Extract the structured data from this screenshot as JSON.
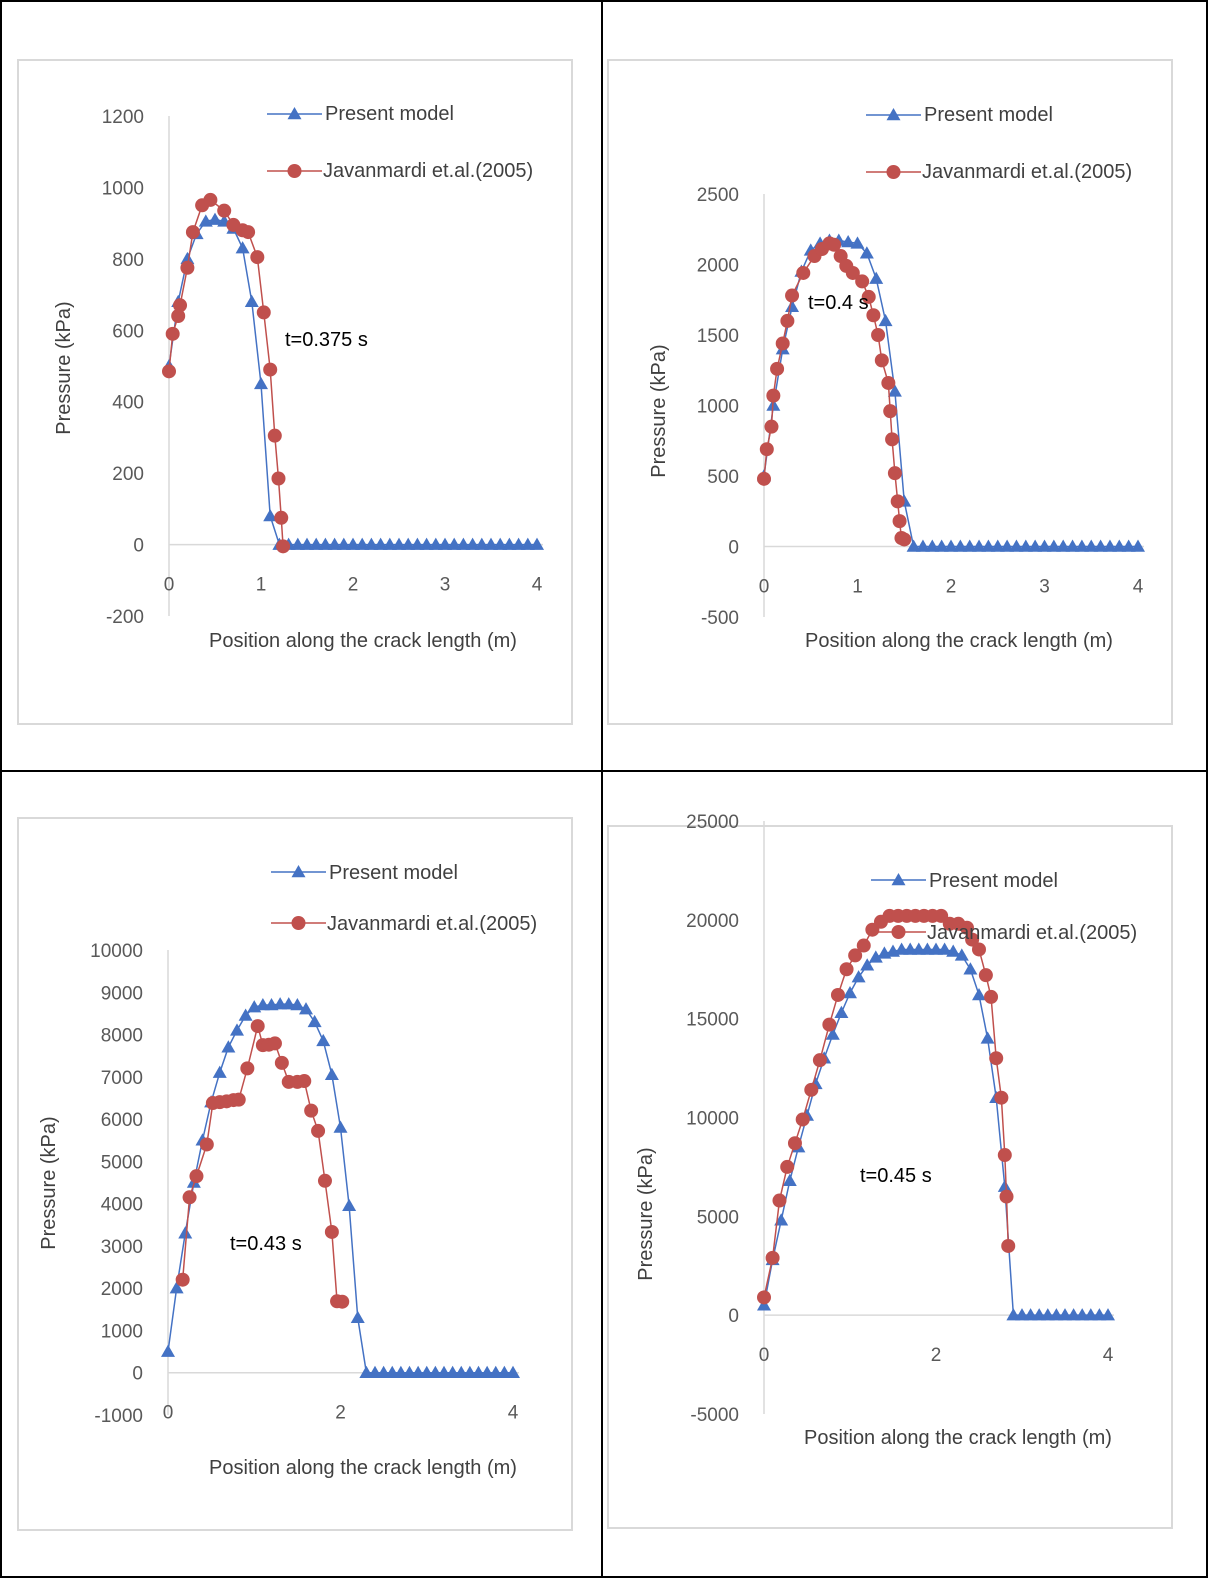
{
  "chart_data": [
    {
      "type": "line",
      "ylabel": "Pressure  (kPa)",
      "xlabel": "Position along the crack length (m)",
      "annotation": "t=0.375 s",
      "ylim": [
        -200,
        1200
      ],
      "yticks": [
        -200,
        0,
        200,
        400,
        600,
        800,
        1000,
        1200
      ],
      "xlim": [
        0,
        4
      ],
      "xticks": [
        0,
        1,
        2,
        3,
        4
      ],
      "legend_position": "top-right",
      "series": [
        {
          "name": "Present model",
          "color": "#4472C4",
          "marker": "triangle",
          "x": [
            0,
            0.1,
            0.2,
            0.3,
            0.4,
            0.5,
            0.6,
            0.7,
            0.8,
            0.9,
            1.0,
            1.1,
            1.2,
            1.3,
            1.4,
            1.5,
            1.6,
            1.7,
            1.8,
            1.9,
            2.0,
            2.1,
            2.2,
            2.3,
            2.4,
            2.5,
            2.6,
            2.7,
            2.8,
            2.9,
            3.0,
            3.1,
            3.2,
            3.3,
            3.4,
            3.5,
            3.6,
            3.7,
            3.8,
            3.9,
            4.0
          ],
          "y": [
            500,
            680,
            800,
            870,
            905,
            910,
            905,
            885,
            830,
            680,
            450,
            80,
            0,
            0,
            0,
            0,
            0,
            0,
            0,
            0,
            0,
            0,
            0,
            0,
            0,
            0,
            0,
            0,
            0,
            0,
            0,
            0,
            0,
            0,
            0,
            0,
            0,
            0,
            0,
            0,
            0
          ]
        },
        {
          "name": "Javanmardi et.al.(2005)",
          "color": "#C0504D",
          "marker": "circle",
          "x": [
            0,
            0.04,
            0.1,
            0.12,
            0.2,
            0.26,
            0.36,
            0.45,
            0.6,
            0.7,
            0.8,
            0.86,
            0.96,
            1.03,
            1.1,
            1.15,
            1.19,
            1.22,
            1.24
          ],
          "y": [
            485,
            590,
            640,
            670,
            775,
            875,
            950,
            965,
            935,
            895,
            880,
            875,
            805,
            650,
            490,
            305,
            185,
            75,
            -5
          ]
        }
      ]
    },
    {
      "type": "line",
      "ylabel": "Pressure  (kPa)",
      "xlabel": "Position along the crack length (m)",
      "annotation": "t=0.4 s",
      "ylim": [
        -500,
        2500
      ],
      "yticks": [
        -500,
        0,
        500,
        1000,
        1500,
        2000,
        2500
      ],
      "xlim": [
        0,
        4
      ],
      "xticks": [
        0,
        1,
        2,
        3,
        4
      ],
      "legend_position": "top-right",
      "series": [
        {
          "name": "Present model",
          "color": "#4472C4",
          "marker": "triangle",
          "x": [
            0,
            0.1,
            0.2,
            0.3,
            0.4,
            0.5,
            0.6,
            0.7,
            0.8,
            0.9,
            1.0,
            1.1,
            1.2,
            1.3,
            1.4,
            1.5,
            1.6,
            1.7,
            1.8,
            1.9,
            2.0,
            2.1,
            2.2,
            2.3,
            2.4,
            2.5,
            2.6,
            2.7,
            2.8,
            2.9,
            3.0,
            3.1,
            3.2,
            3.3,
            3.4,
            3.5,
            3.6,
            3.7,
            3.8,
            3.9,
            4.0
          ],
          "y": [
            500,
            1000,
            1400,
            1700,
            1950,
            2100,
            2150,
            2170,
            2170,
            2160,
            2150,
            2080,
            1900,
            1600,
            1100,
            320,
            0,
            0,
            0,
            0,
            0,
            0,
            0,
            0,
            0,
            0,
            0,
            0,
            0,
            0,
            0,
            0,
            0,
            0,
            0,
            0,
            0,
            0,
            0,
            0,
            0
          ]
        },
        {
          "name": "Javanmardi et.al.(2005)",
          "color": "#C0504D",
          "marker": "circle",
          "x": [
            0,
            0.03,
            0.08,
            0.1,
            0.14,
            0.2,
            0.25,
            0.3,
            0.42,
            0.54,
            0.62,
            0.7,
            0.75,
            0.82,
            0.88,
            0.95,
            1.05,
            1.12,
            1.17,
            1.22,
            1.26,
            1.33,
            1.35,
            1.37,
            1.4,
            1.43,
            1.45,
            1.47,
            1.5
          ],
          "y": [
            480,
            690,
            850,
            1070,
            1260,
            1440,
            1600,
            1780,
            1940,
            2060,
            2110,
            2150,
            2140,
            2060,
            1990,
            1940,
            1880,
            1770,
            1640,
            1500,
            1320,
            1160,
            960,
            760,
            520,
            320,
            180,
            60,
            50
          ]
        }
      ]
    },
    {
      "type": "line",
      "ylabel": "Pressure  (kPa)",
      "xlabel": "Position along the crack length (m)",
      "annotation": "t=0.43 s",
      "ylim": [
        -1000,
        10000
      ],
      "yticks": [
        -1000,
        0,
        1000,
        2000,
        3000,
        4000,
        5000,
        6000,
        7000,
        8000,
        9000,
        10000
      ],
      "xlim": [
        0,
        4
      ],
      "xticks": [
        0,
        2,
        4
      ],
      "legend_position": "top-right",
      "series": [
        {
          "name": "Present model",
          "color": "#4472C4",
          "marker": "triangle",
          "x": [
            0,
            0.1,
            0.2,
            0.3,
            0.4,
            0.5,
            0.6,
            0.7,
            0.8,
            0.9,
            1.0,
            1.1,
            1.2,
            1.3,
            1.4,
            1.5,
            1.6,
            1.7,
            1.8,
            1.9,
            2.0,
            2.1,
            2.2,
            2.3,
            2.4,
            2.5,
            2.6,
            2.7,
            2.8,
            2.9,
            3.0,
            3.1,
            3.2,
            3.3,
            3.4,
            3.5,
            3.6,
            3.7,
            3.8,
            3.9,
            4.0
          ],
          "y": [
            500,
            2000,
            3300,
            4500,
            5500,
            6400,
            7100,
            7700,
            8100,
            8450,
            8650,
            8700,
            8700,
            8720,
            8720,
            8700,
            8600,
            8300,
            7850,
            7050,
            5800,
            3950,
            1300,
            0,
            0,
            0,
            0,
            0,
            0,
            0,
            0,
            0,
            0,
            0,
            0,
            0,
            0,
            0,
            0,
            0,
            0
          ]
        },
        {
          "name": "Javanmardi et.al.(2005)",
          "color": "#C0504D",
          "marker": "circle",
          "x": [
            0.17,
            0.25,
            0.33,
            0.45,
            0.52,
            0.6,
            0.68,
            0.76,
            0.82,
            0.92,
            1.04,
            1.1,
            1.17,
            1.24,
            1.32,
            1.4,
            1.5,
            1.58,
            1.66,
            1.74,
            1.82,
            1.9,
            1.96,
            2.02
          ],
          "y": [
            2200,
            4150,
            4650,
            5400,
            6380,
            6400,
            6420,
            6450,
            6460,
            7200,
            8200,
            7750,
            7760,
            7790,
            7330,
            6880,
            6880,
            6900,
            6200,
            5720,
            4540,
            3330,
            1690,
            1680
          ]
        }
      ]
    },
    {
      "type": "line",
      "ylabel": "Pressure  (kPa)",
      "xlabel": "Position along the crack length (m)",
      "annotation": "t=0.45 s",
      "ylim": [
        -5000,
        25000
      ],
      "yticks": [
        -5000,
        0,
        5000,
        10000,
        15000,
        20000,
        25000
      ],
      "xlim": [
        0,
        4
      ],
      "xticks": [
        0,
        2,
        4
      ],
      "legend_position": "top-right",
      "series": [
        {
          "name": "Present model",
          "color": "#4472C4",
          "marker": "triangle",
          "x": [
            0,
            0.1,
            0.2,
            0.3,
            0.4,
            0.5,
            0.6,
            0.7,
            0.8,
            0.9,
            1.0,
            1.1,
            1.2,
            1.3,
            1.4,
            1.5,
            1.6,
            1.7,
            1.8,
            1.9,
            2.0,
            2.1,
            2.2,
            2.3,
            2.4,
            2.5,
            2.6,
            2.7,
            2.8,
            2.9,
            3.0,
            3.1,
            3.2,
            3.3,
            3.4,
            3.5,
            3.6,
            3.7,
            3.8,
            3.9,
            4.0
          ],
          "y": [
            500,
            2800,
            4800,
            6800,
            8500,
            10100,
            11700,
            13000,
            14200,
            15300,
            16300,
            17100,
            17700,
            18100,
            18300,
            18400,
            18500,
            18500,
            18500,
            18500,
            18500,
            18500,
            18400,
            18200,
            17500,
            16200,
            14000,
            11000,
            6500,
            0,
            0,
            0,
            0,
            0,
            0,
            0,
            0,
            0,
            0,
            0,
            0
          ]
        },
        {
          "name": "Javanmardi et.al.(2005)",
          "color": "#C0504D",
          "marker": "circle",
          "x": [
            0,
            0.1,
            0.18,
            0.27,
            0.36,
            0.45,
            0.55,
            0.65,
            0.76,
            0.86,
            0.96,
            1.06,
            1.16,
            1.26,
            1.36,
            1.46,
            1.56,
            1.66,
            1.76,
            1.86,
            1.96,
            2.06,
            2.16,
            2.26,
            2.36,
            2.42,
            2.5,
            2.58,
            2.64,
            2.7,
            2.76,
            2.8,
            2.82,
            2.84
          ],
          "y": [
            900,
            2900,
            5800,
            7500,
            8700,
            9900,
            11400,
            12900,
            14700,
            16200,
            17500,
            18200,
            18700,
            19500,
            19900,
            20200,
            20200,
            20200,
            20200,
            20200,
            20200,
            20200,
            19800,
            19800,
            19600,
            19000,
            18500,
            17200,
            16100,
            13000,
            11000,
            8100,
            6000,
            3500
          ]
        }
      ]
    }
  ]
}
